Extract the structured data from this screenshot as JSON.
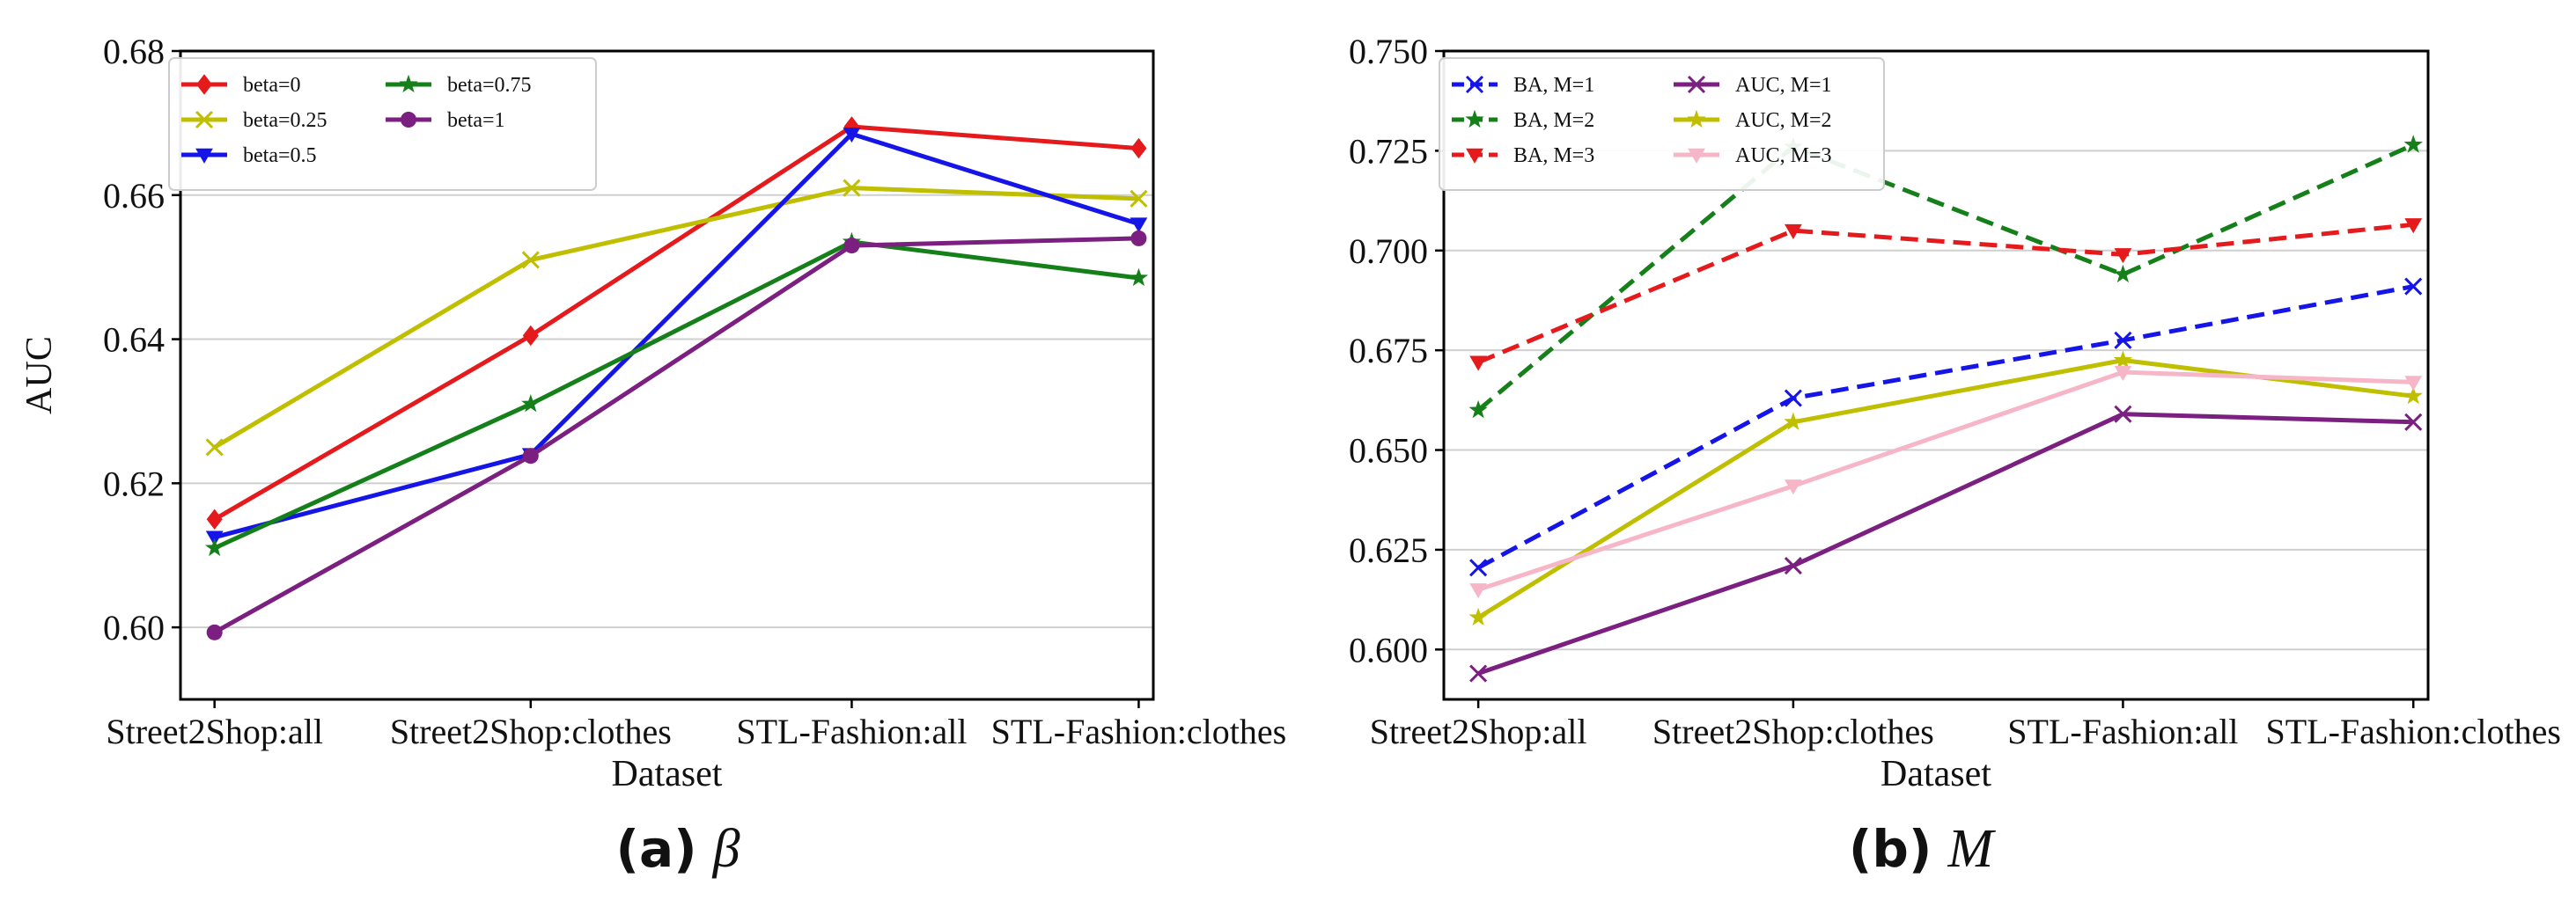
{
  "chart_data": [
    {
      "type": "line",
      "caption": {
        "letter": "(a)",
        "symbol": "β"
      },
      "xlabel": "Dataset",
      "ylabel": "AUC",
      "categories": [
        "Street2Shop:all",
        "Street2Shop:clothes",
        "STL-Fashion:all",
        "STL-Fashion:clothes"
      ],
      "ylim": [
        0.59,
        0.68
      ],
      "yticks": [
        0.6,
        0.62,
        0.64,
        0.66,
        0.68
      ],
      "ytick_labels": [
        "0.60",
        "0.62",
        "0.64",
        "0.66",
        "0.68"
      ],
      "grid": "y",
      "legend_position": "top-left",
      "series": [
        {
          "name": "beta=0",
          "color": "#e41a1c",
          "marker": "diamond",
          "dashed": false,
          "values": [
            0.615,
            0.6405,
            0.6695,
            0.6665
          ]
        },
        {
          "name": "beta=0.25",
          "color": "#bfbf00",
          "marker": "x",
          "dashed": false,
          "values": [
            0.625,
            0.651,
            0.661,
            0.6595
          ]
        },
        {
          "name": "beta=0.5",
          "color": "#1515e8",
          "marker": "triangle-down",
          "dashed": false,
          "values": [
            0.6125,
            0.624,
            0.6685,
            0.656
          ]
        },
        {
          "name": "beta=0.75",
          "color": "#15801a",
          "marker": "star",
          "dashed": false,
          "values": [
            0.611,
            0.631,
            0.6535,
            0.6485
          ]
        },
        {
          "name": "beta=1",
          "color": "#7b1f80",
          "marker": "circle",
          "dashed": false,
          "values": [
            0.5993,
            0.6238,
            0.653,
            0.654
          ]
        }
      ]
    },
    {
      "type": "line",
      "caption": {
        "letter": "(b)",
        "symbol": "M"
      },
      "xlabel": "Dataset",
      "ylabel": "",
      "categories": [
        "Street2Shop:all",
        "Street2Shop:clothes",
        "STL-Fashion:all",
        "STL-Fashion:clothes"
      ],
      "ylim": [
        0.5875,
        0.75
      ],
      "yticks": [
        0.6,
        0.625,
        0.65,
        0.675,
        0.7,
        0.725,
        0.75
      ],
      "ytick_labels": [
        "0.600",
        "0.625",
        "0.650",
        "0.675",
        "0.700",
        "0.725",
        "0.750"
      ],
      "grid": "y",
      "legend_position": "top-left",
      "series": [
        {
          "name": "BA, M=1",
          "color": "#1515e8",
          "marker": "x",
          "dashed": true,
          "values": [
            0.6205,
            0.663,
            0.6775,
            0.691
          ]
        },
        {
          "name": "BA, M=2",
          "color": "#15801a",
          "marker": "star",
          "dashed": true,
          "values": [
            0.66,
            0.726,
            0.694,
            0.7265
          ]
        },
        {
          "name": "BA, M=3",
          "color": "#e41a1c",
          "marker": "triangle-down",
          "dashed": true,
          "values": [
            0.672,
            0.705,
            0.699,
            0.7065
          ]
        },
        {
          "name": "AUC, M=1",
          "color": "#7b1f80",
          "marker": "x",
          "dashed": false,
          "values": [
            0.594,
            0.621,
            0.659,
            0.657
          ]
        },
        {
          "name": "AUC, M=2",
          "color": "#bfbf00",
          "marker": "star",
          "dashed": false,
          "values": [
            0.608,
            0.657,
            0.6725,
            0.6635
          ]
        },
        {
          "name": "AUC, M=3",
          "color": "#f7b6c8",
          "marker": "triangle-down",
          "dashed": false,
          "values": [
            0.615,
            0.641,
            0.6695,
            0.667
          ]
        }
      ]
    }
  ]
}
